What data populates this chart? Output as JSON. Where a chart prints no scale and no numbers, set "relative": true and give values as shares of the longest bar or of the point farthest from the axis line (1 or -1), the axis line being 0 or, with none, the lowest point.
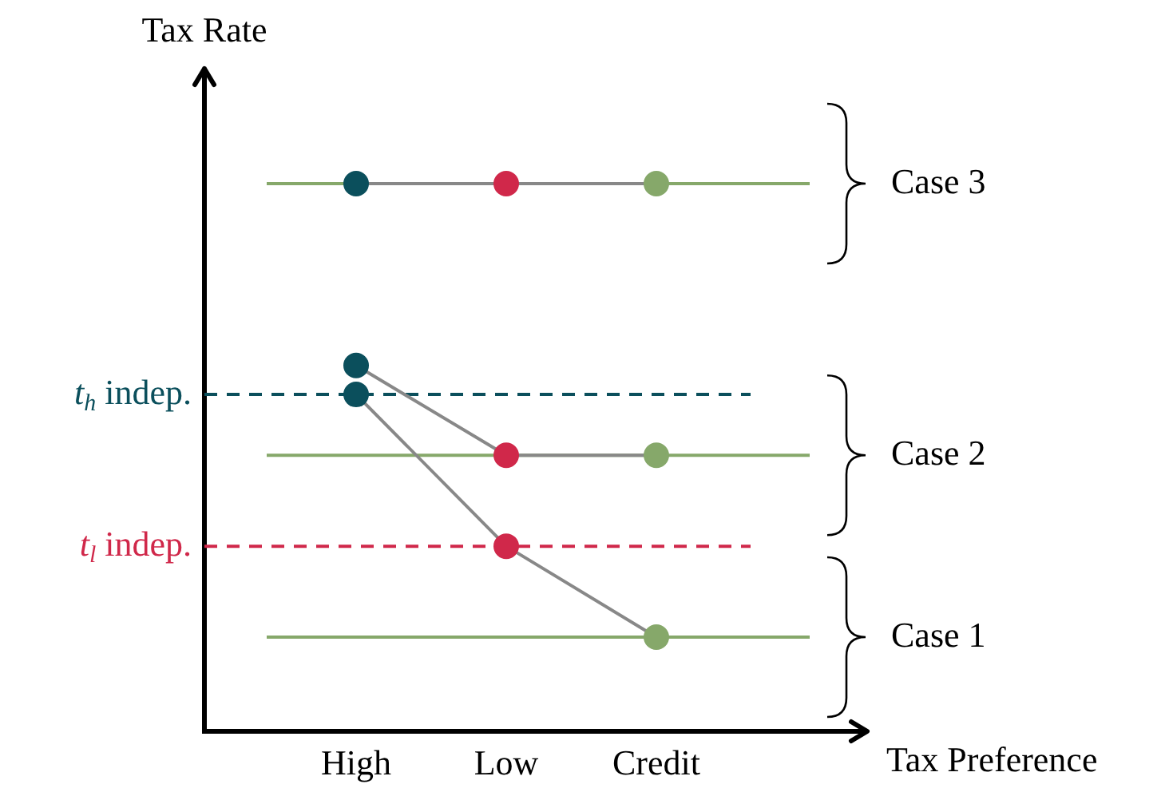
{
  "chart_data": {
    "type": "line",
    "relative": true,
    "xlabel": "Tax Preference",
    "ylabel": "Tax Rate",
    "categories": [
      "High",
      "Low",
      "Credit"
    ],
    "series": [
      {
        "color": "#888888",
        "colors": [
          "#0b4f5c",
          "#d0284a",
          "#86a86a"
        ],
        "values": [
          1,
          1,
          1
        ]
      },
      {
        "color": "#888888",
        "colors": [
          "#0b4f5c",
          "#d0284a",
          "#86a86a"
        ],
        "values": [
          0.668,
          0.504,
          0.504
        ]
      },
      {
        "color": "#888888",
        "colors": [
          "#0b4f5c",
          "#d0284a",
          "#86a86a"
        ],
        "values": [
          0.615,
          0.338,
          0.172
        ]
      }
    ],
    "ref_lines": [
      {
        "axis": "y",
        "value": 1,
        "color": "#86a86a",
        "line_style": "solid"
      },
      {
        "axis": "y",
        "value": 0.504,
        "color": "#86a86a",
        "line_style": "solid"
      },
      {
        "axis": "y",
        "value": 0.172,
        "color": "#86a86a",
        "line_style": "solid"
      },
      {
        "axis": "y",
        "value": 0.615,
        "label": "t$_{h}$ indep.",
        "color": "#0b4f5c",
        "line_style": "dashed"
      },
      {
        "axis": "y",
        "value": 0.338,
        "label": "t$_{l}$ indep.",
        "color": "#d0284a",
        "line_style": "dashed"
      }
    ],
    "annotations": [
      "Case 3",
      "Case 2",
      "Case 1"
    ],
    "marker": "circle",
    "line_style": "solid",
    "grid": false,
    "legend": false,
    "tick_labels": "x"
  }
}
